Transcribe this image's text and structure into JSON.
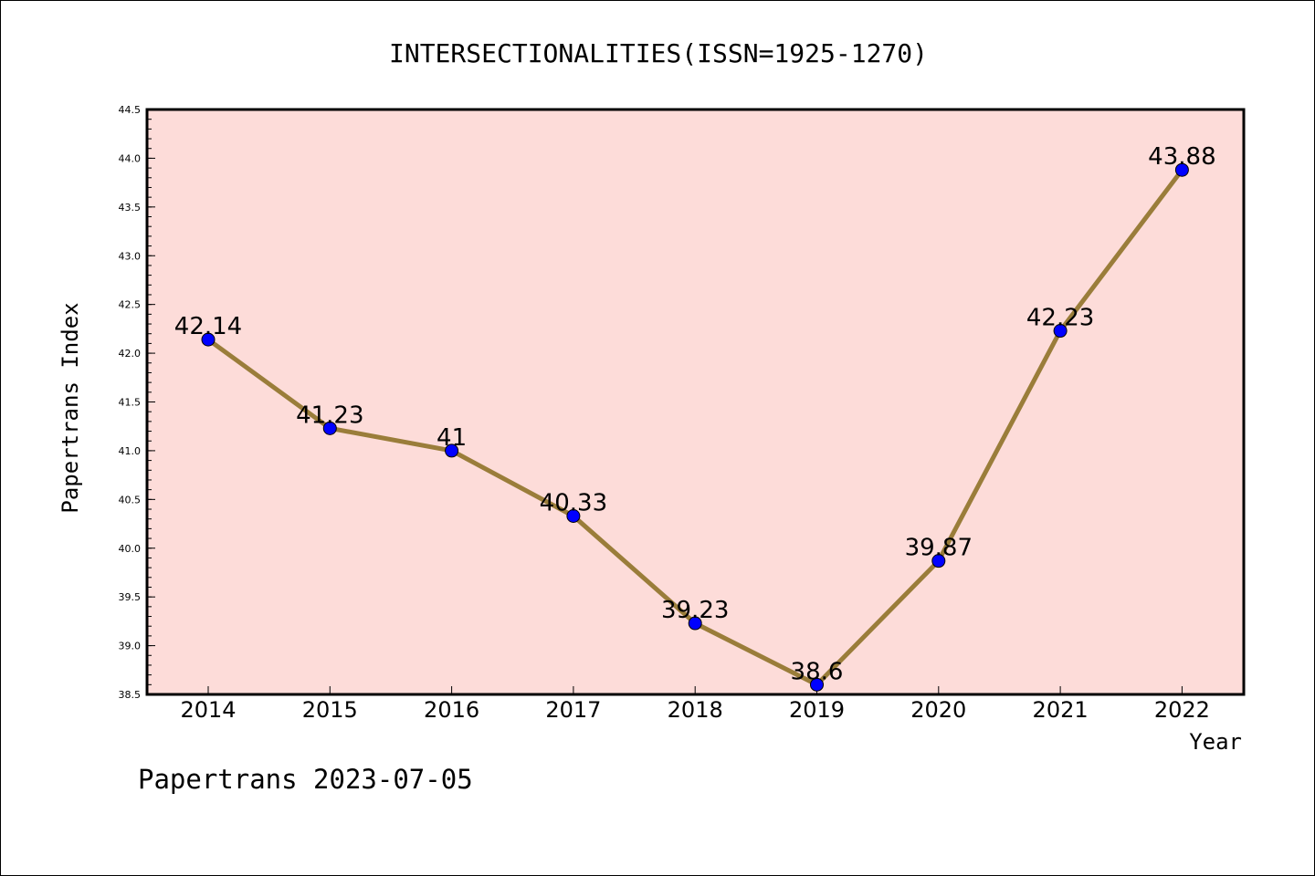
{
  "chart_data": {
    "type": "line",
    "title": "INTERSECTIONALITIES(ISSN=1925-1270)",
    "xlabel": "Year",
    "ylabel": "Papertrans Index",
    "categories": [
      "2014",
      "2015",
      "2016",
      "2017",
      "2018",
      "2019",
      "2020",
      "2021",
      "2022"
    ],
    "values": [
      42.14,
      41.23,
      41,
      40.33,
      39.23,
      38.6,
      39.87,
      42.23,
      43.88
    ],
    "data_labels": [
      "42.14",
      "41.23",
      "41",
      "40.33",
      "39.23",
      "38.6",
      "39.87",
      "42.23",
      "43.88"
    ],
    "ylim": [
      38.5,
      44.5
    ],
    "yticks": [
      "38.5",
      "39.0",
      "39.5",
      "40.0",
      "40.5",
      "41.0",
      "41.5",
      "42.0",
      "42.5",
      "43.0",
      "43.5",
      "44.0",
      "44.5"
    ],
    "grid": false,
    "plot_background": "#fddcd9",
    "line_color": "#9a7d3a",
    "marker_color": "#0000ff"
  },
  "footer": "Papertrans 2023-07-05"
}
